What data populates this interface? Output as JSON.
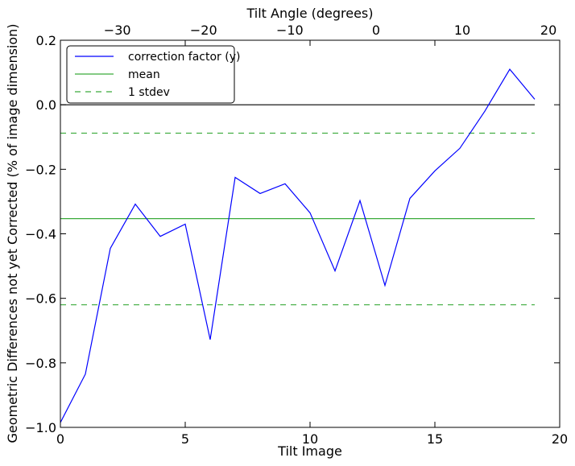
{
  "chart_data": {
    "type": "line",
    "xlabel": "Tilt Image",
    "ylabel": "Geometric Differences not yet Corrected (% of image dimension)",
    "top_xlabel": "Tilt Angle (degrees)",
    "xlim": [
      0,
      20
    ],
    "ylim": [
      -1.0,
      0.2
    ],
    "top_xlim": [
      -36.6,
      21.3
    ],
    "x_ticks": [
      0,
      5,
      10,
      15,
      20
    ],
    "x_tick_labels": [
      "0",
      "5",
      "10",
      "15",
      "20"
    ],
    "y_ticks": [
      -1.0,
      -0.8,
      -0.6,
      -0.4,
      -0.2,
      0.0,
      0.2
    ],
    "y_tick_labels": [
      "−1.0",
      "−0.8",
      "−0.6",
      "−0.4",
      "−0.2",
      "0.0",
      "0.2"
    ],
    "top_ticks": [
      -30,
      -20,
      -10,
      0,
      10,
      20
    ],
    "top_tick_labels": [
      "−30",
      "−20",
      "−10",
      "0",
      "10",
      "20"
    ],
    "grid": false,
    "legend_position": "top-left",
    "series": [
      {
        "name": "correction factor (y)",
        "color": "#0000ff",
        "style": "solid",
        "x": [
          0,
          1,
          2,
          3,
          4,
          5,
          6,
          7,
          8,
          9,
          10,
          11,
          12,
          13,
          14,
          15,
          16,
          17,
          18,
          19
        ],
        "y": [
          -0.985,
          -0.835,
          -0.445,
          -0.308,
          -0.408,
          -0.37,
          -0.728,
          -0.225,
          -0.275,
          -0.245,
          -0.335,
          -0.515,
          -0.297,
          -0.56,
          -0.29,
          -0.205,
          -0.135,
          -0.02,
          0.11,
          0.017
        ]
      },
      {
        "name": "mean",
        "color": "#3aaa3a",
        "style": "solid",
        "x": [
          0,
          19
        ],
        "y": [
          -0.353,
          -0.353
        ]
      },
      {
        "name": "1 stdev",
        "color": "#3aaa3a",
        "style": "dashed",
        "x": [
          0,
          19
        ],
        "y": [
          -0.088,
          -0.088
        ]
      },
      {
        "name": "",
        "color": "#3aaa3a",
        "style": "dashed",
        "x": [
          0,
          19
        ],
        "y": [
          -0.62,
          -0.62
        ]
      },
      {
        "name": "",
        "color": "#000000",
        "style": "solid",
        "x": [
          0,
          19
        ],
        "y": [
          0.0,
          0.0
        ]
      }
    ]
  }
}
